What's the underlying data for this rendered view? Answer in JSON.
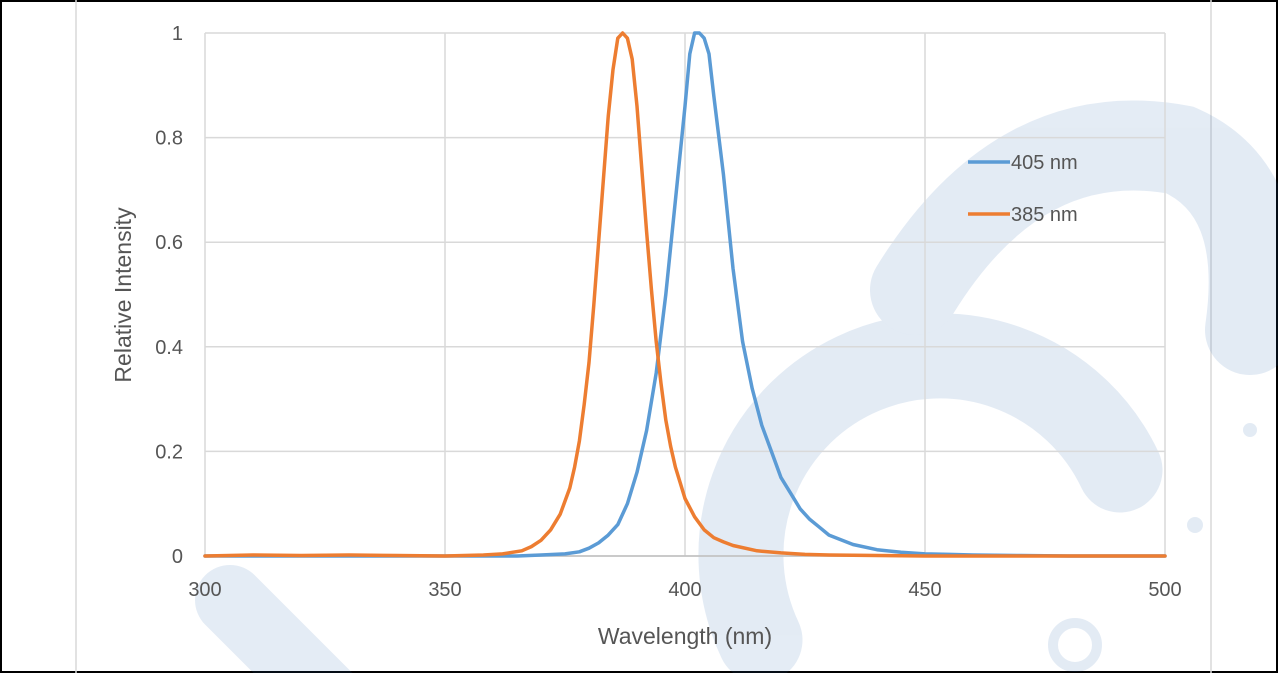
{
  "chart_data": {
    "type": "line",
    "title": "",
    "xlabel": "Wavelength (nm)",
    "ylabel": "Relative Intensity",
    "xlim": [
      300,
      500
    ],
    "ylim": [
      0,
      1
    ],
    "x_ticks": [
      300,
      350,
      400,
      450,
      500
    ],
    "y_ticks": [
      0,
      0.2,
      0.4,
      0.6,
      0.8,
      1
    ],
    "x_tick_labels": [
      "300",
      "350",
      "400",
      "450",
      "500"
    ],
    "y_tick_labels": [
      "0",
      "0.2",
      "0.4",
      "0.6",
      "0.8",
      "1"
    ],
    "grid": true,
    "legend_position": "right",
    "series": [
      {
        "name": "405 nm",
        "color": "#5b9bd5",
        "x": [
          300,
          350,
          365,
          370,
          375,
          378,
          380,
          382,
          384,
          386,
          388,
          390,
          392,
          394,
          396,
          398,
          400,
          401,
          402,
          403,
          404,
          405,
          406,
          408,
          410,
          412,
          414,
          416,
          418,
          420,
          422,
          424,
          426,
          428,
          430,
          435,
          440,
          445,
          450,
          455,
          460,
          470,
          480,
          500
        ],
        "values": [
          0,
          0,
          0,
          0.002,
          0.004,
          0.008,
          0.015,
          0.025,
          0.04,
          0.06,
          0.1,
          0.16,
          0.24,
          0.35,
          0.5,
          0.68,
          0.86,
          0.96,
          1.0,
          1.0,
          0.99,
          0.96,
          0.88,
          0.73,
          0.55,
          0.41,
          0.32,
          0.25,
          0.2,
          0.15,
          0.12,
          0.09,
          0.07,
          0.055,
          0.04,
          0.022,
          0.012,
          0.007,
          0.004,
          0.003,
          0.002,
          0.001,
          0.0,
          0.0
        ]
      },
      {
        "name": "385 nm",
        "color": "#ed7d31",
        "x": [
          300,
          310,
          320,
          330,
          340,
          350,
          358,
          362,
          366,
          368,
          370,
          372,
          374,
          376,
          377,
          378,
          379,
          380,
          381,
          382,
          383,
          384,
          385,
          386,
          387,
          388,
          389,
          390,
          391,
          392,
          393,
          394,
          395,
          396,
          397,
          398,
          399,
          400,
          402,
          404,
          406,
          408,
          410,
          415,
          420,
          425,
          430,
          440,
          450,
          460,
          480,
          500
        ],
        "values": [
          0,
          0.002,
          0.001,
          0.002,
          0.001,
          0.0,
          0.002,
          0.004,
          0.01,
          0.018,
          0.03,
          0.05,
          0.08,
          0.13,
          0.17,
          0.22,
          0.29,
          0.37,
          0.48,
          0.6,
          0.72,
          0.84,
          0.93,
          0.99,
          1.0,
          0.99,
          0.95,
          0.86,
          0.74,
          0.62,
          0.51,
          0.41,
          0.33,
          0.26,
          0.21,
          0.17,
          0.14,
          0.11,
          0.075,
          0.05,
          0.035,
          0.027,
          0.02,
          0.01,
          0.006,
          0.003,
          0.002,
          0.001,
          0.0,
          0.0,
          0.0,
          0.0
        ]
      }
    ]
  }
}
